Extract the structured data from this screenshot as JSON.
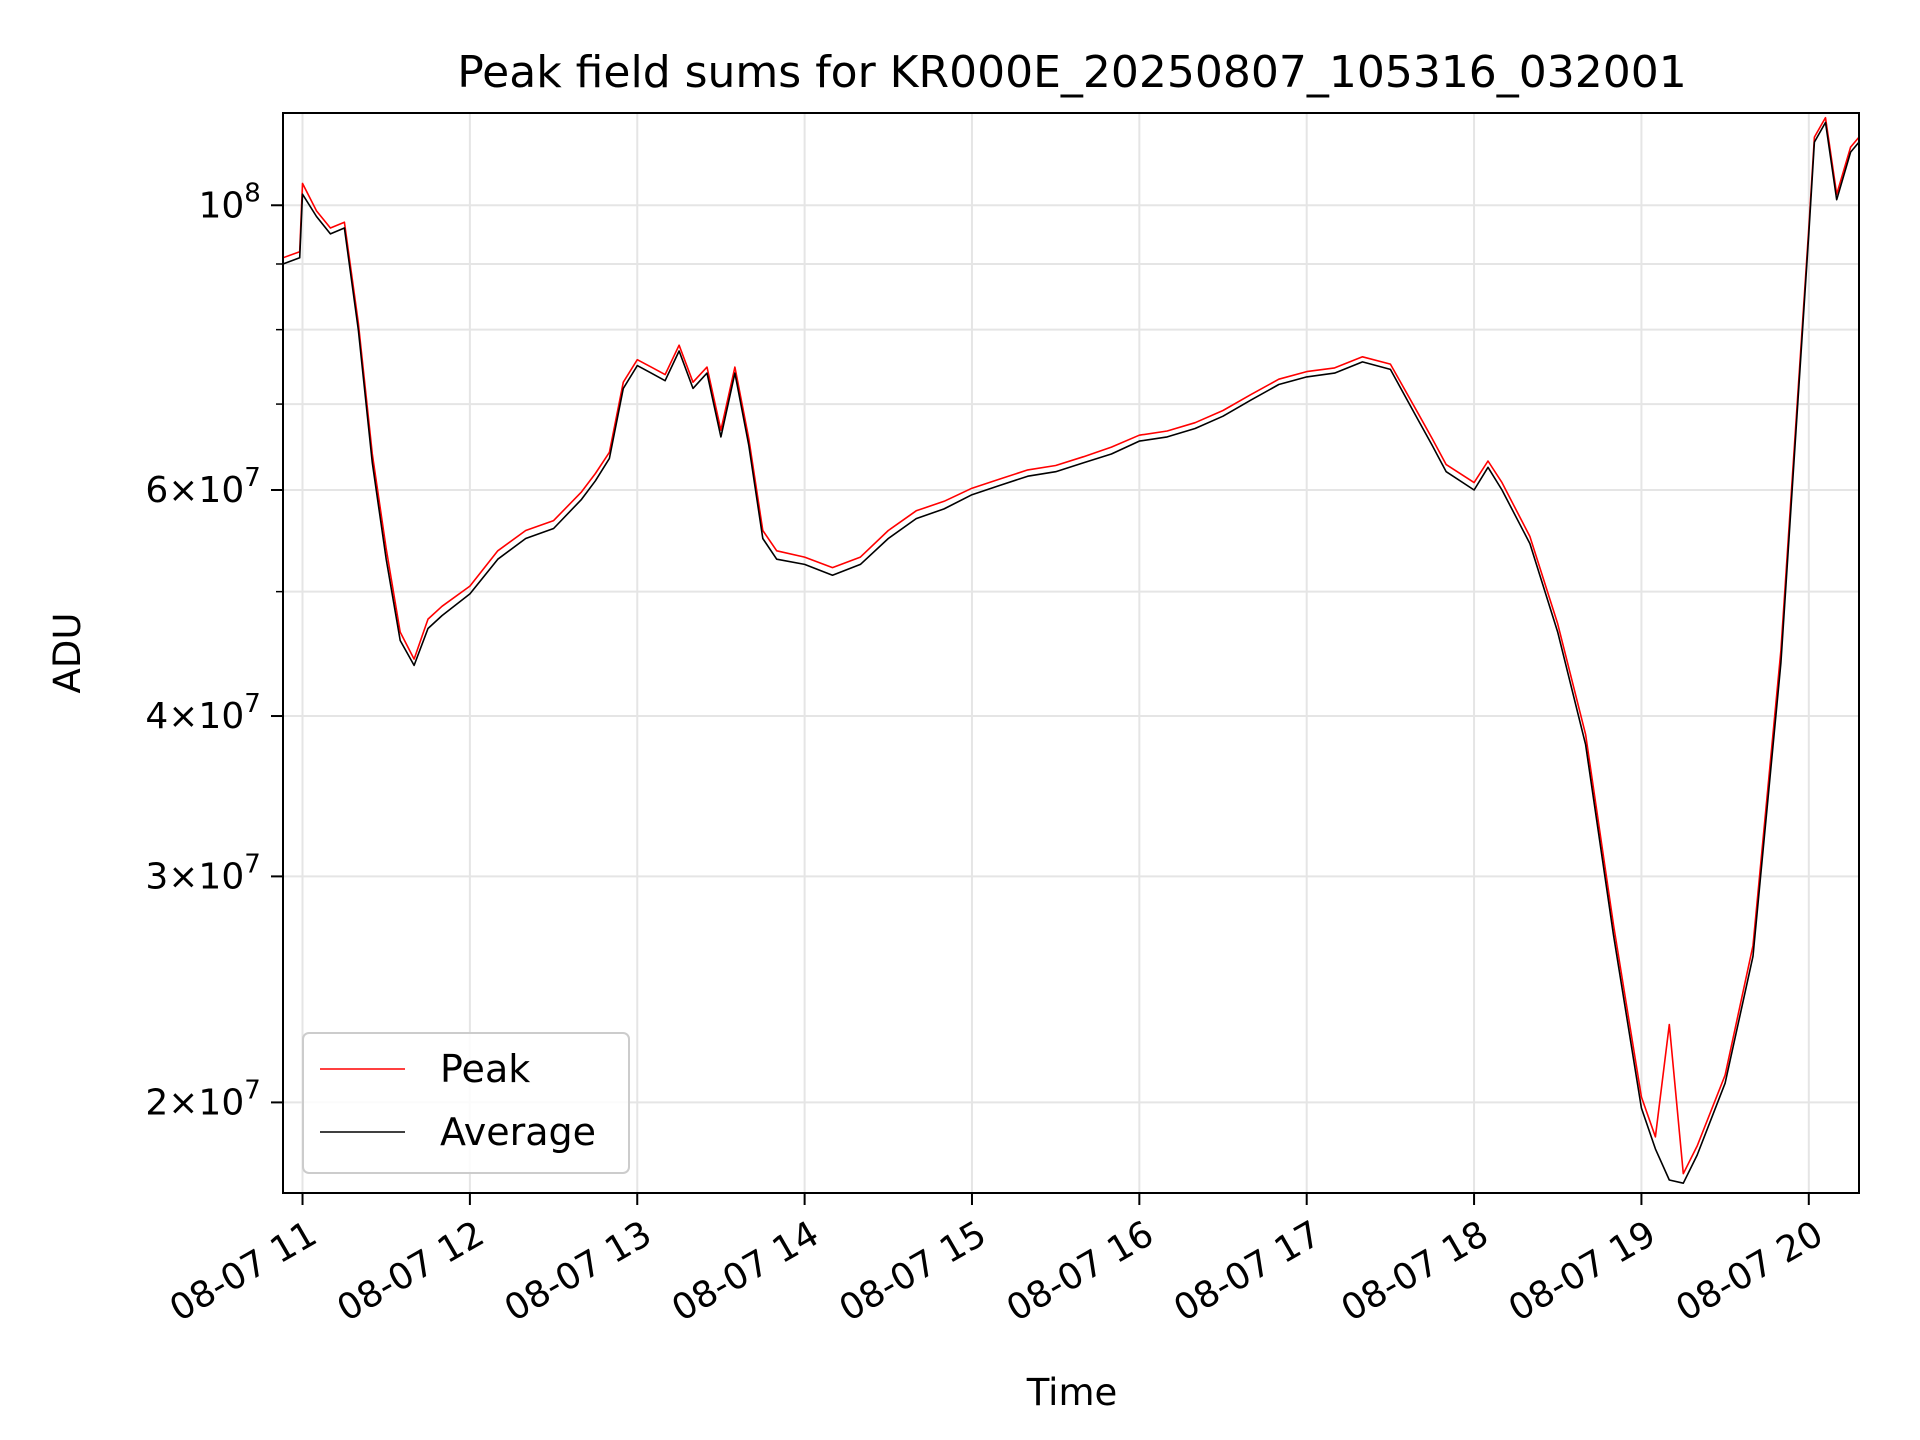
{
  "chart_data": {
    "type": "line",
    "title": "Peak field sums for KR000E_20250807_105316_032001",
    "xlabel": "Time",
    "ylabel": "ADU",
    "y_scale": "log",
    "ylim": [
      17000000,
      118000000
    ],
    "xlim": [
      "2025-08-07 10:53",
      "2025-08-07 20:18"
    ],
    "grid": true,
    "legend_position": "lower-left",
    "x_ticks": [
      {
        "value": "2025-08-07 11:00",
        "label": "08-07 11"
      },
      {
        "value": "2025-08-07 12:00",
        "label": "08-07 12"
      },
      {
        "value": "2025-08-07 13:00",
        "label": "08-07 13"
      },
      {
        "value": "2025-08-07 14:00",
        "label": "08-07 14"
      },
      {
        "value": "2025-08-07 15:00",
        "label": "08-07 15"
      },
      {
        "value": "2025-08-07 16:00",
        "label": "08-07 16"
      },
      {
        "value": "2025-08-07 17:00",
        "label": "08-07 17"
      },
      {
        "value": "2025-08-07 18:00",
        "label": "08-07 18"
      },
      {
        "value": "2025-08-07 19:00",
        "label": "08-07 19"
      },
      {
        "value": "2025-08-07 20:00",
        "label": "08-07 20"
      }
    ],
    "y_ticks": [
      {
        "value": 20000000,
        "mant": "2",
        "exp": "7"
      },
      {
        "value": 30000000,
        "mant": "3",
        "exp": "7"
      },
      {
        "value": 40000000,
        "mant": "4",
        "exp": "7"
      },
      {
        "value": 60000000,
        "mant": "6",
        "exp": "7"
      },
      {
        "value": 100000000,
        "mant": "",
        "exp": "8"
      }
    ],
    "y_minor_ticks": [
      50000000,
      70000000,
      80000000,
      90000000
    ],
    "series": [
      {
        "name": "Average",
        "color": "#000000",
        "x": [
          "2025-08-07 10:53",
          "2025-08-07 10:59",
          "2025-08-07 11:00",
          "2025-08-07 11:05",
          "2025-08-07 11:10",
          "2025-08-07 11:15",
          "2025-08-07 11:20",
          "2025-08-07 11:25",
          "2025-08-07 11:30",
          "2025-08-07 11:35",
          "2025-08-07 11:40",
          "2025-08-07 11:45",
          "2025-08-07 11:50",
          "2025-08-07 12:00",
          "2025-08-07 12:10",
          "2025-08-07 12:20",
          "2025-08-07 12:30",
          "2025-08-07 12:40",
          "2025-08-07 12:45",
          "2025-08-07 12:50",
          "2025-08-07 12:55",
          "2025-08-07 13:00",
          "2025-08-07 13:05",
          "2025-08-07 13:10",
          "2025-08-07 13:15",
          "2025-08-07 13:20",
          "2025-08-07 13:25",
          "2025-08-07 13:30",
          "2025-08-07 13:35",
          "2025-08-07 13:40",
          "2025-08-07 13:45",
          "2025-08-07 13:50",
          "2025-08-07 14:00",
          "2025-08-07 14:10",
          "2025-08-07 14:20",
          "2025-08-07 14:30",
          "2025-08-07 14:40",
          "2025-08-07 14:50",
          "2025-08-07 15:00",
          "2025-08-07 15:10",
          "2025-08-07 15:20",
          "2025-08-07 15:30",
          "2025-08-07 15:40",
          "2025-08-07 15:50",
          "2025-08-07 16:00",
          "2025-08-07 16:10",
          "2025-08-07 16:20",
          "2025-08-07 16:30",
          "2025-08-07 16:40",
          "2025-08-07 16:50",
          "2025-08-07 17:00",
          "2025-08-07 17:10",
          "2025-08-07 17:20",
          "2025-08-07 17:30",
          "2025-08-07 17:40",
          "2025-08-07 17:45",
          "2025-08-07 17:50",
          "2025-08-07 18:00",
          "2025-08-07 18:05",
          "2025-08-07 18:10",
          "2025-08-07 18:20",
          "2025-08-07 18:30",
          "2025-08-07 18:40",
          "2025-08-07 18:50",
          "2025-08-07 19:00",
          "2025-08-07 19:05",
          "2025-08-07 19:10",
          "2025-08-07 19:15",
          "2025-08-07 19:20",
          "2025-08-07 19:30",
          "2025-08-07 19:40",
          "2025-08-07 19:50",
          "2025-08-07 20:00",
          "2025-08-07 20:02",
          "2025-08-07 20:05",
          "2025-08-07 20:06",
          "2025-08-07 20:10",
          "2025-08-07 20:15",
          "2025-08-07 20:18"
        ],
        "y": [
          90000000,
          91000000,
          102000000,
          98000000,
          95000000,
          96000000,
          80000000,
          63000000,
          53000000,
          45800000,
          43800000,
          46800000,
          47900000,
          49800000,
          53000000,
          55000000,
          56000000,
          59000000,
          61000000,
          63500000,
          72000000,
          75000000,
          74000000,
          73000000,
          77000000,
          72000000,
          74000000,
          66000000,
          74000000,
          65000000,
          55000000,
          53000000,
          52500000,
          51500000,
          52500000,
          55000000,
          57000000,
          58000000,
          59500000,
          60500000,
          61500000,
          62000000,
          63000000,
          64000000,
          65500000,
          66000000,
          67000000,
          68500000,
          70500000,
          72500000,
          73500000,
          74000000,
          75500000,
          74500000,
          68000000,
          65000000,
          62000000,
          60000000,
          62500000,
          60000000,
          54500000,
          46500000,
          38000000,
          27000000,
          19800000,
          18400000,
          17400000,
          17300000,
          18200000,
          20700000,
          26000000,
          44000000,
          95000000,
          112000000,
          115000000,
          116000000,
          101000000,
          110000000,
          112000000
        ]
      },
      {
        "name": "Peak",
        "color": "#ff0000",
        "x": [
          "2025-08-07 10:53",
          "2025-08-07 10:59",
          "2025-08-07 11:00",
          "2025-08-07 11:05",
          "2025-08-07 11:10",
          "2025-08-07 11:15",
          "2025-08-07 11:20",
          "2025-08-07 11:25",
          "2025-08-07 11:30",
          "2025-08-07 11:35",
          "2025-08-07 11:40",
          "2025-08-07 11:45",
          "2025-08-07 11:50",
          "2025-08-07 12:00",
          "2025-08-07 12:10",
          "2025-08-07 12:20",
          "2025-08-07 12:30",
          "2025-08-07 12:40",
          "2025-08-07 12:45",
          "2025-08-07 12:50",
          "2025-08-07 12:55",
          "2025-08-07 13:00",
          "2025-08-07 13:05",
          "2025-08-07 13:10",
          "2025-08-07 13:15",
          "2025-08-07 13:20",
          "2025-08-07 13:25",
          "2025-08-07 13:30",
          "2025-08-07 13:35",
          "2025-08-07 13:40",
          "2025-08-07 13:45",
          "2025-08-07 13:50",
          "2025-08-07 14:00",
          "2025-08-07 14:10",
          "2025-08-07 14:20",
          "2025-08-07 14:30",
          "2025-08-07 14:40",
          "2025-08-07 14:50",
          "2025-08-07 15:00",
          "2025-08-07 15:10",
          "2025-08-07 15:20",
          "2025-08-07 15:30",
          "2025-08-07 15:40",
          "2025-08-07 15:50",
          "2025-08-07 16:00",
          "2025-08-07 16:10",
          "2025-08-07 16:20",
          "2025-08-07 16:30",
          "2025-08-07 16:40",
          "2025-08-07 16:50",
          "2025-08-07 17:00",
          "2025-08-07 17:10",
          "2025-08-07 17:20",
          "2025-08-07 17:30",
          "2025-08-07 17:40",
          "2025-08-07 17:45",
          "2025-08-07 17:50",
          "2025-08-07 18:00",
          "2025-08-07 18:05",
          "2025-08-07 18:10",
          "2025-08-07 18:20",
          "2025-08-07 18:30",
          "2025-08-07 18:40",
          "2025-08-07 18:50",
          "2025-08-07 19:00",
          "2025-08-07 19:05",
          "2025-08-07 19:10",
          "2025-08-07 19:15",
          "2025-08-07 19:20",
          "2025-08-07 19:30",
          "2025-08-07 19:40",
          "2025-08-07 19:50",
          "2025-08-07 20:00",
          "2025-08-07 20:02",
          "2025-08-07 20:05",
          "2025-08-07 20:06",
          "2025-08-07 20:10",
          "2025-08-07 20:15",
          "2025-08-07 20:18"
        ],
        "y": [
          91000000,
          92000000,
          104000000,
          99000000,
          96000000,
          97000000,
          81000000,
          64000000,
          54000000,
          46500000,
          44300000,
          47600000,
          48700000,
          50500000,
          53800000,
          55800000,
          56800000,
          59800000,
          61800000,
          64200000,
          72800000,
          75800000,
          74800000,
          73800000,
          77800000,
          72800000,
          74800000,
          66800000,
          74800000,
          65800000,
          55800000,
          53800000,
          53200000,
          52200000,
          53200000,
          55800000,
          57800000,
          58800000,
          60200000,
          61200000,
          62200000,
          62700000,
          63700000,
          64800000,
          66200000,
          66700000,
          67700000,
          69200000,
          71200000,
          73200000,
          74200000,
          74700000,
          76200000,
          75200000,
          68800000,
          65800000,
          62800000,
          60800000,
          63200000,
          60800000,
          55200000,
          47200000,
          38700000,
          27500000,
          20200000,
          18800000,
          23000000,
          17600000,
          18500000,
          21000000,
          26500000,
          45000000,
          96000000,
          113000000,
          116000000,
          117000000,
          102000000,
          111000000,
          113000000
        ]
      }
    ]
  }
}
